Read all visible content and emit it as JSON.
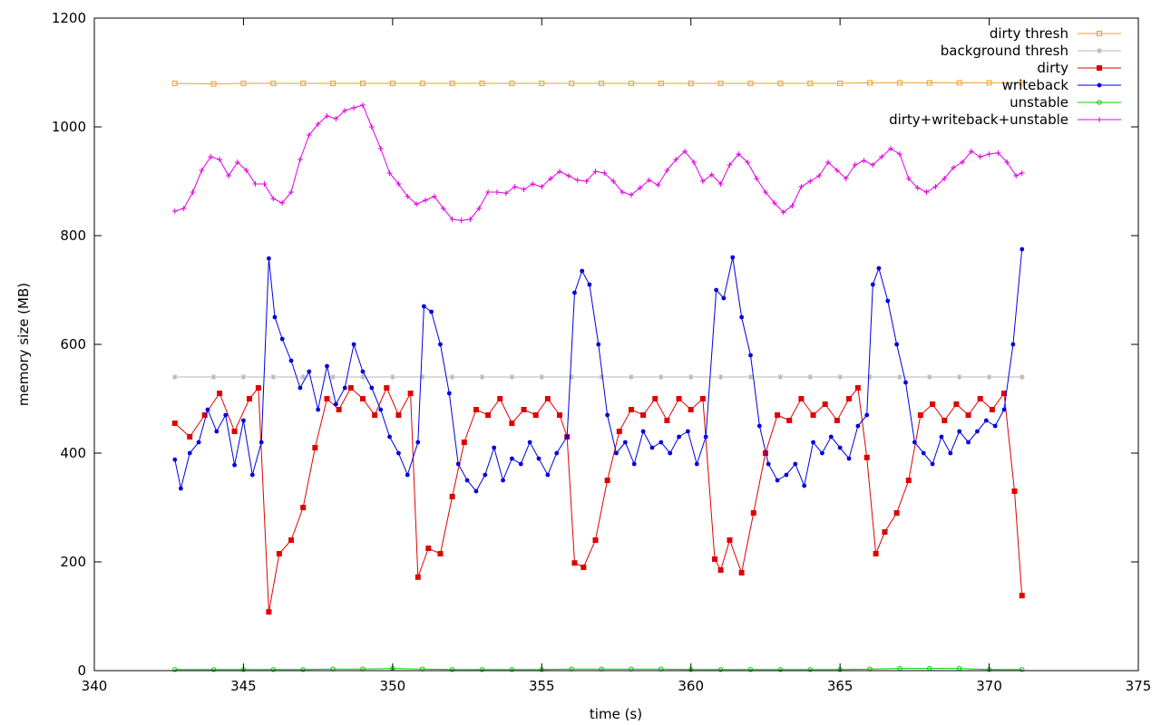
{
  "chart_data": {
    "type": "line",
    "title": "",
    "xlabel": "time (s)",
    "ylabel": "memory size (MB)",
    "xlim": [
      340,
      375
    ],
    "ylim": [
      0,
      1200
    ],
    "x_ticks": [
      340,
      345,
      350,
      355,
      360,
      365,
      370,
      375
    ],
    "y_ticks": [
      0,
      200,
      400,
      600,
      800,
      1000,
      1200
    ],
    "grid": false,
    "legend_position": "top-right",
    "series": [
      {
        "name": "dirty thresh",
        "color": "#f0a020",
        "marker": "open-square",
        "x": [
          342.7,
          344.0,
          345.0,
          346.0,
          347.0,
          348.0,
          349.0,
          350.0,
          351.0,
          352.0,
          353.0,
          354.0,
          355.0,
          356.0,
          357.0,
          358.0,
          359.0,
          360.0,
          361.0,
          362.0,
          363.0,
          364.0,
          365.0,
          366.0,
          367.0,
          368.0,
          369.0,
          370.0,
          371.1
        ],
        "y": [
          1080,
          1079,
          1080,
          1080,
          1080,
          1080,
          1080,
          1080,
          1080,
          1080,
          1080,
          1080,
          1080,
          1080,
          1080,
          1080,
          1080,
          1080,
          1080,
          1080,
          1080,
          1080,
          1080,
          1081,
          1081,
          1081,
          1081,
          1081,
          1081
        ]
      },
      {
        "name": "background thresh",
        "color": "#b4b4b4",
        "marker": "star",
        "x": [
          342.7,
          344.0,
          345.0,
          346.0,
          347.0,
          348.0,
          349.0,
          350.0,
          351.0,
          352.0,
          353.0,
          354.0,
          355.0,
          356.0,
          357.0,
          358.0,
          359.0,
          360.0,
          361.0,
          362.0,
          363.0,
          364.0,
          365.0,
          366.0,
          367.0,
          368.0,
          369.0,
          370.0,
          371.1
        ],
        "y": [
          540,
          540,
          540,
          540,
          540,
          540,
          540,
          540,
          540,
          540,
          540,
          540,
          540,
          540,
          540,
          540,
          540,
          540,
          540,
          540,
          540,
          540,
          540,
          540,
          540,
          540,
          540,
          540,
          540
        ]
      },
      {
        "name": "dirty",
        "color": "#e00000",
        "marker": "filled-square",
        "x": [
          342.7,
          343.2,
          343.7,
          344.2,
          344.7,
          345.2,
          345.5,
          345.85,
          346.2,
          346.6,
          347.0,
          347.4,
          347.8,
          348.2,
          348.6,
          349.0,
          349.4,
          349.8,
          350.2,
          350.6,
          350.85,
          351.2,
          351.6,
          352.0,
          352.4,
          352.8,
          353.2,
          353.6,
          354.0,
          354.4,
          354.8,
          355.2,
          355.6,
          355.85,
          356.1,
          356.4,
          356.8,
          357.2,
          357.6,
          358.0,
          358.4,
          358.8,
          359.2,
          359.6,
          360.0,
          360.4,
          360.8,
          361.0,
          361.3,
          361.7,
          362.1,
          362.5,
          362.9,
          363.3,
          363.7,
          364.1,
          364.5,
          364.9,
          365.3,
          365.6,
          365.9,
          366.2,
          366.5,
          366.9,
          367.3,
          367.7,
          368.1,
          368.5,
          368.9,
          369.3,
          369.7,
          370.1,
          370.5,
          370.85,
          371.1
        ],
        "y": [
          455,
          430,
          470,
          510,
          440,
          500,
          520,
          108,
          215,
          240,
          300,
          410,
          500,
          480,
          520,
          500,
          470,
          520,
          470,
          510,
          172,
          225,
          215,
          320,
          420,
          480,
          470,
          500,
          455,
          480,
          470,
          500,
          470,
          430,
          198,
          190,
          240,
          350,
          440,
          480,
          470,
          500,
          460,
          500,
          480,
          500,
          205,
          185,
          240,
          180,
          290,
          400,
          470,
          460,
          500,
          470,
          490,
          460,
          500,
          520,
          392,
          215,
          255,
          290,
          350,
          470,
          490,
          460,
          490,
          470,
          500,
          480,
          510,
          330,
          138
        ]
      },
      {
        "name": "writeback",
        "color": "#0000e0",
        "marker": "filled-circle",
        "x": [
          342.7,
          342.9,
          343.2,
          343.5,
          343.8,
          344.1,
          344.4,
          344.7,
          345.0,
          345.3,
          345.6,
          345.85,
          346.05,
          346.3,
          346.6,
          346.9,
          347.2,
          347.5,
          347.8,
          348.1,
          348.4,
          348.7,
          349.0,
          349.3,
          349.6,
          349.9,
          350.2,
          350.5,
          350.85,
          351.05,
          351.3,
          351.6,
          351.9,
          352.2,
          352.5,
          352.8,
          353.1,
          353.4,
          353.7,
          354.0,
          354.3,
          354.6,
          354.9,
          355.2,
          355.5,
          355.85,
          356.1,
          356.35,
          356.6,
          356.9,
          357.2,
          357.5,
          357.8,
          358.1,
          358.4,
          358.7,
          359.0,
          359.3,
          359.6,
          359.9,
          360.2,
          360.5,
          360.85,
          361.1,
          361.4,
          361.7,
          362.0,
          362.3,
          362.6,
          362.9,
          363.2,
          363.5,
          363.8,
          364.1,
          364.4,
          364.7,
          365.0,
          365.3,
          365.6,
          365.9,
          366.1,
          366.3,
          366.6,
          366.9,
          367.2,
          367.5,
          367.8,
          368.1,
          368.4,
          368.7,
          369.0,
          369.3,
          369.6,
          369.9,
          370.2,
          370.5,
          370.8,
          371.1
        ],
        "y": [
          388,
          335,
          400,
          420,
          480,
          440,
          470,
          378,
          460,
          360,
          420,
          758,
          650,
          610,
          570,
          520,
          550,
          480,
          560,
          490,
          520,
          600,
          550,
          520,
          480,
          430,
          400,
          360,
          420,
          670,
          660,
          600,
          510,
          380,
          350,
          330,
          360,
          410,
          350,
          390,
          380,
          420,
          390,
          360,
          400,
          430,
          695,
          735,
          710,
          600,
          470,
          400,
          420,
          380,
          440,
          410,
          420,
          400,
          430,
          440,
          380,
          430,
          700,
          685,
          760,
          650,
          580,
          450,
          380,
          350,
          360,
          380,
          340,
          420,
          400,
          430,
          410,
          390,
          450,
          470,
          710,
          740,
          680,
          600,
          530,
          420,
          400,
          380,
          430,
          400,
          440,
          420,
          440,
          460,
          450,
          480,
          600,
          775
        ]
      },
      {
        "name": "unstable",
        "color": "#00d000",
        "marker": "open-circle",
        "x": [
          342.7,
          344.0,
          345.0,
          346.0,
          347.0,
          348.0,
          349.0,
          350.0,
          351.0,
          352.0,
          353.0,
          354.0,
          355.0,
          356.0,
          357.0,
          358.0,
          359.0,
          360.0,
          361.0,
          362.0,
          363.0,
          364.0,
          365.0,
          366.0,
          367.0,
          368.0,
          369.0,
          370.0,
          371.1
        ],
        "y": [
          2,
          2,
          2,
          2,
          2,
          3,
          3,
          4,
          3,
          2,
          2,
          2,
          2,
          3,
          3,
          3,
          3,
          2,
          2,
          2,
          2,
          2,
          2,
          3,
          4,
          4,
          4,
          2,
          2
        ]
      },
      {
        "name": "dirty+writeback+unstable",
        "color": "#e000e0",
        "marker": "plus",
        "x": [
          342.7,
          343.0,
          343.3,
          343.6,
          343.9,
          344.2,
          344.5,
          344.8,
          345.1,
          345.4,
          345.7,
          346.0,
          346.3,
          346.6,
          346.9,
          347.2,
          347.5,
          347.8,
          348.1,
          348.4,
          348.7,
          349.0,
          349.3,
          349.6,
          349.9,
          350.2,
          350.5,
          350.8,
          351.1,
          351.4,
          351.7,
          352.0,
          352.3,
          352.6,
          352.9,
          353.2,
          353.5,
          353.8,
          354.1,
          354.4,
          354.7,
          355.0,
          355.3,
          355.6,
          355.9,
          356.2,
          356.5,
          356.8,
          357.1,
          357.4,
          357.7,
          358.0,
          358.3,
          358.6,
          358.9,
          359.2,
          359.5,
          359.8,
          360.1,
          360.4,
          360.7,
          361.0,
          361.3,
          361.6,
          361.9,
          362.2,
          362.5,
          362.8,
          363.1,
          363.4,
          363.7,
          364.0,
          364.3,
          364.6,
          364.9,
          365.2,
          365.5,
          365.8,
          366.1,
          366.4,
          366.7,
          367.0,
          367.3,
          367.6,
          367.9,
          368.2,
          368.5,
          368.8,
          369.1,
          369.4,
          369.7,
          370.0,
          370.3,
          370.6,
          370.9,
          371.1
        ],
        "y": [
          845,
          850,
          880,
          920,
          945,
          940,
          910,
          935,
          920,
          895,
          895,
          868,
          860,
          880,
          940,
          985,
          1005,
          1020,
          1015,
          1030,
          1035,
          1040,
          1000,
          960,
          915,
          895,
          872,
          858,
          865,
          872,
          850,
          830,
          828,
          830,
          850,
          880,
          880,
          878,
          890,
          885,
          895,
          890,
          905,
          918,
          910,
          902,
          900,
          918,
          915,
          900,
          880,
          875,
          888,
          902,
          893,
          920,
          940,
          955,
          935,
          900,
          912,
          895,
          930,
          950,
          935,
          905,
          880,
          860,
          843,
          855,
          890,
          900,
          910,
          935,
          920,
          905,
          930,
          938,
          930,
          945,
          960,
          950,
          905,
          888,
          880,
          890,
          905,
          925,
          935,
          955,
          945,
          950,
          952,
          935,
          910,
          915
        ]
      }
    ]
  }
}
